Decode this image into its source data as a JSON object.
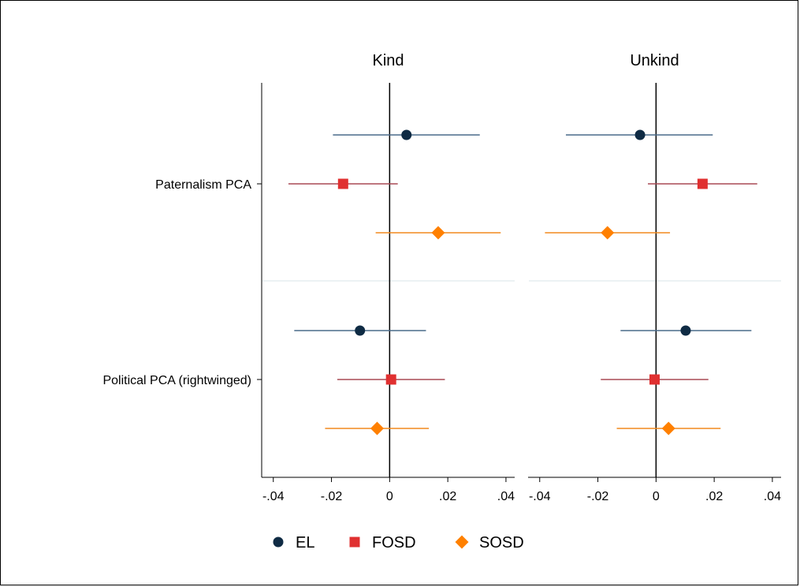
{
  "chart_data": {
    "type": "scatter",
    "subtype": "coefficient-plot",
    "panels": [
      "Kind",
      "Unkind"
    ],
    "categories": [
      "Paternalism PCA",
      "Political PCA (rightwinged)"
    ],
    "x_ticks": [
      -0.04,
      -0.02,
      0,
      0.02,
      0.04
    ],
    "x_tick_labels": [
      "-.04",
      "-.02",
      "0",
      ".02",
      ".04"
    ],
    "xlim": [
      -0.044,
      0.043
    ],
    "reference_line": 0,
    "grid": false,
    "legend_position": "bottom",
    "series": [
      {
        "name": "EL",
        "marker": "circle",
        "color": "#0f2b44",
        "ci_color": "#4a6b8a",
        "points": [
          {
            "panel": "Kind",
            "category": "Paternalism PCA",
            "estimate": 0.0058,
            "ci": [
              -0.0195,
              0.031
            ]
          },
          {
            "panel": "Unkind",
            "category": "Paternalism PCA",
            "estimate": -0.0055,
            "ci": [
              -0.031,
              0.0195
            ]
          },
          {
            "panel": "Kind",
            "category": "Political PCA (rightwinged)",
            "estimate": -0.0102,
            "ci": [
              -0.0328,
              0.0125
            ]
          },
          {
            "panel": "Unkind",
            "category": "Political PCA (rightwinged)",
            "estimate": 0.0102,
            "ci": [
              -0.0122,
              0.0328
            ]
          }
        ]
      },
      {
        "name": "FOSD",
        "marker": "square",
        "color": "#e03030",
        "ci_color": "#a84a55",
        "points": [
          {
            "panel": "Kind",
            "category": "Paternalism PCA",
            "estimate": -0.016,
            "ci": [
              -0.0348,
              0.0028
            ]
          },
          {
            "panel": "Unkind",
            "category": "Paternalism PCA",
            "estimate": 0.016,
            "ci": [
              -0.0028,
              0.0348
            ]
          },
          {
            "panel": "Kind",
            "category": "Political PCA (rightwinged)",
            "estimate": 0.0005,
            "ci": [
              -0.018,
              0.019
            ]
          },
          {
            "panel": "Unkind",
            "category": "Political PCA (rightwinged)",
            "estimate": -0.0005,
            "ci": [
              -0.019,
              0.018
            ]
          }
        ]
      },
      {
        "name": "SOSD",
        "marker": "diamond",
        "color": "#ff8000",
        "ci_color": "#f28a1e",
        "points": [
          {
            "panel": "Kind",
            "category": "Paternalism PCA",
            "estimate": 0.0167,
            "ci": [
              -0.0048,
              0.0382
            ]
          },
          {
            "panel": "Unkind",
            "category": "Paternalism PCA",
            "estimate": -0.0167,
            "ci": [
              -0.0382,
              0.0048
            ]
          },
          {
            "panel": "Kind",
            "category": "Political PCA (rightwinged)",
            "estimate": -0.0043,
            "ci": [
              -0.0222,
              0.0135
            ]
          },
          {
            "panel": "Unkind",
            "category": "Political PCA (rightwinged)",
            "estimate": 0.0043,
            "ci": [
              -0.0135,
              0.0222
            ]
          }
        ]
      }
    ]
  }
}
